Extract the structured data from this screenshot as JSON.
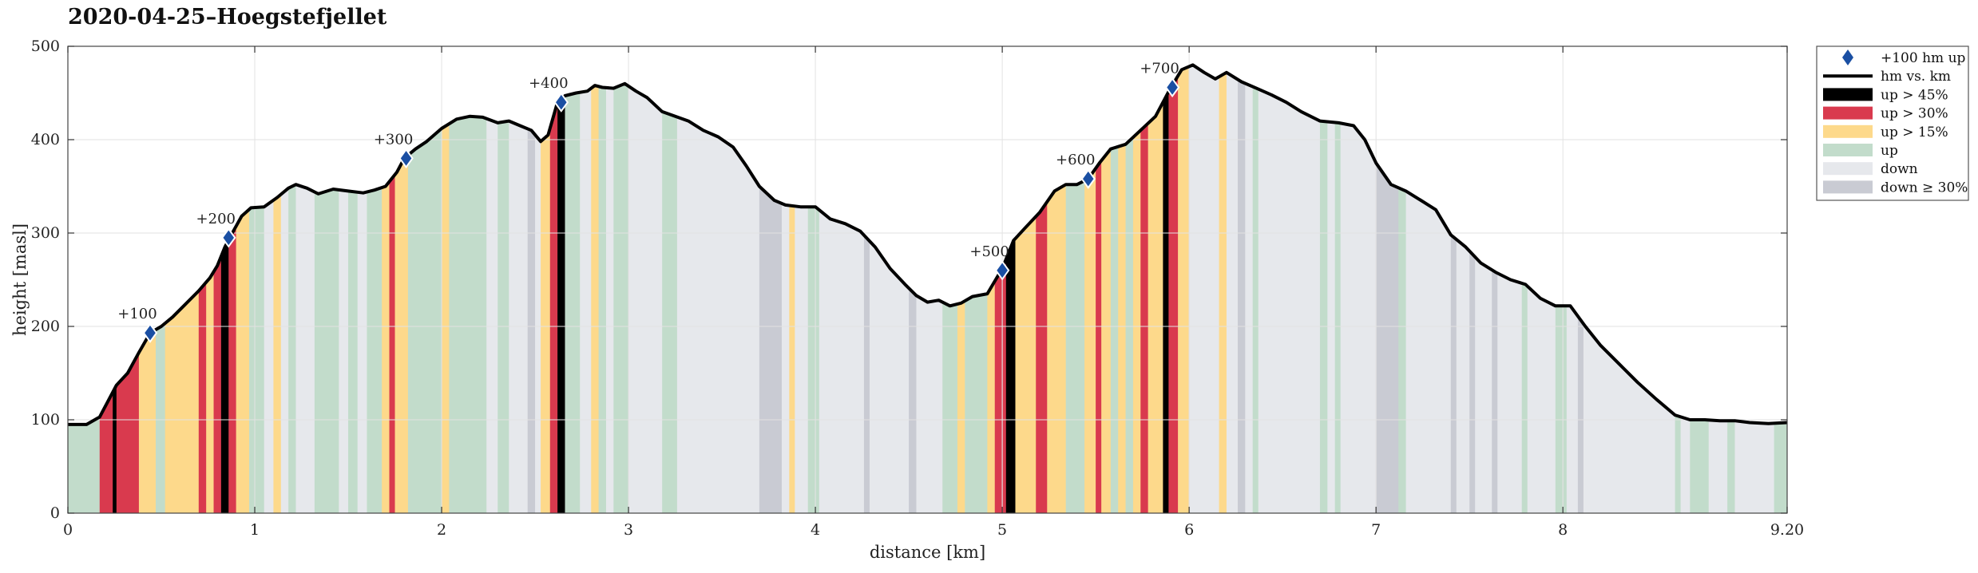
{
  "chart_data": {
    "type": "area",
    "title": "2020-04-25–Hoegstefjellet",
    "xlabel": "distance [km]",
    "ylabel": "height [masl]",
    "xlim": [
      0,
      9.2
    ],
    "ylim": [
      0,
      500
    ],
    "xticks": [
      0,
      1,
      2,
      3,
      4,
      5,
      6,
      7,
      8,
      9.2
    ],
    "xtick_labels": [
      "0",
      "1",
      "2",
      "3",
      "4",
      "5",
      "6",
      "7",
      "8",
      "9.20"
    ],
    "yticks": [
      0,
      100,
      200,
      300,
      400,
      500
    ],
    "ytick_labels": [
      "0",
      "100",
      "200",
      "300",
      "400",
      "500"
    ],
    "grid": true,
    "legend_position": "outside-top-right",
    "colors": {
      "profile": "#000000",
      "marker": "#1a4fa3",
      "up45": "#000000",
      "up30": "#d93a4e",
      "up15": "#fdd98b",
      "up": "#c2dccb",
      "down": "#e6e8ec",
      "down30": "#c9cbd3"
    },
    "legend": [
      {
        "key": "marker",
        "label": "+100 hm up"
      },
      {
        "key": "line",
        "label": "hm vs. km"
      },
      {
        "key": "up45",
        "label": "up > 45%"
      },
      {
        "key": "up30",
        "label": "up > 30%"
      },
      {
        "key": "up15",
        "label": "up > 15%"
      },
      {
        "key": "up",
        "label": "up"
      },
      {
        "key": "down",
        "label": "down"
      },
      {
        "key": "down30",
        "label": "down ≥ 30%"
      }
    ],
    "profile": [
      [
        0.0,
        95
      ],
      [
        0.1,
        95
      ],
      [
        0.17,
        103
      ],
      [
        0.21,
        118
      ],
      [
        0.26,
        137
      ],
      [
        0.32,
        150
      ],
      [
        0.38,
        172
      ],
      [
        0.44,
        193
      ],
      [
        0.5,
        200
      ],
      [
        0.56,
        210
      ],
      [
        0.62,
        222
      ],
      [
        0.7,
        238
      ],
      [
        0.76,
        252
      ],
      [
        0.8,
        265
      ],
      [
        0.84,
        285
      ],
      [
        0.88,
        300
      ],
      [
        0.93,
        318
      ],
      [
        0.98,
        327
      ],
      [
        1.05,
        328
      ],
      [
        1.12,
        338
      ],
      [
        1.18,
        348
      ],
      [
        1.22,
        352
      ],
      [
        1.28,
        348
      ],
      [
        1.34,
        342
      ],
      [
        1.42,
        347
      ],
      [
        1.5,
        345
      ],
      [
        1.58,
        343
      ],
      [
        1.64,
        346
      ],
      [
        1.7,
        350
      ],
      [
        1.76,
        365
      ],
      [
        1.8,
        380
      ],
      [
        1.86,
        390
      ],
      [
        1.92,
        398
      ],
      [
        2.0,
        412
      ],
      [
        2.08,
        422
      ],
      [
        2.15,
        425
      ],
      [
        2.22,
        424
      ],
      [
        2.3,
        418
      ],
      [
        2.36,
        420
      ],
      [
        2.42,
        415
      ],
      [
        2.48,
        410
      ],
      [
        2.53,
        398
      ],
      [
        2.57,
        405
      ],
      [
        2.62,
        440
      ],
      [
        2.66,
        447
      ],
      [
        2.72,
        450
      ],
      [
        2.78,
        452
      ],
      [
        2.82,
        458
      ],
      [
        2.86,
        456
      ],
      [
        2.92,
        455
      ],
      [
        2.98,
        460
      ],
      [
        3.04,
        452
      ],
      [
        3.1,
        445
      ],
      [
        3.18,
        430
      ],
      [
        3.25,
        425
      ],
      [
        3.32,
        420
      ],
      [
        3.4,
        410
      ],
      [
        3.48,
        403
      ],
      [
        3.56,
        392
      ],
      [
        3.63,
        372
      ],
      [
        3.7,
        350
      ],
      [
        3.78,
        335
      ],
      [
        3.84,
        330
      ],
      [
        3.92,
        328
      ],
      [
        4.0,
        328
      ],
      [
        4.08,
        315
      ],
      [
        4.16,
        310
      ],
      [
        4.24,
        302
      ],
      [
        4.32,
        285
      ],
      [
        4.4,
        262
      ],
      [
        4.48,
        245
      ],
      [
        4.54,
        233
      ],
      [
        4.6,
        226
      ],
      [
        4.66,
        228
      ],
      [
        4.72,
        222
      ],
      [
        4.78,
        225
      ],
      [
        4.84,
        232
      ],
      [
        4.92,
        235
      ],
      [
        5.0,
        262
      ],
      [
        5.06,
        292
      ],
      [
        5.12,
        305
      ],
      [
        5.2,
        322
      ],
      [
        5.28,
        345
      ],
      [
        5.34,
        352
      ],
      [
        5.4,
        352
      ],
      [
        5.46,
        358
      ],
      [
        5.52,
        375
      ],
      [
        5.58,
        390
      ],
      [
        5.66,
        395
      ],
      [
        5.74,
        410
      ],
      [
        5.82,
        425
      ],
      [
        5.9,
        455
      ],
      [
        5.96,
        475
      ],
      [
        6.02,
        480
      ],
      [
        6.08,
        472
      ],
      [
        6.14,
        465
      ],
      [
        6.2,
        472
      ],
      [
        6.28,
        462
      ],
      [
        6.36,
        455
      ],
      [
        6.44,
        448
      ],
      [
        6.52,
        440
      ],
      [
        6.6,
        430
      ],
      [
        6.7,
        420
      ],
      [
        6.8,
        418
      ],
      [
        6.88,
        415
      ],
      [
        6.94,
        400
      ],
      [
        7.0,
        375
      ],
      [
        7.08,
        352
      ],
      [
        7.16,
        345
      ],
      [
        7.24,
        335
      ],
      [
        7.32,
        325
      ],
      [
        7.4,
        298
      ],
      [
        7.48,
        285
      ],
      [
        7.56,
        268
      ],
      [
        7.64,
        258
      ],
      [
        7.72,
        250
      ],
      [
        7.8,
        245
      ],
      [
        7.88,
        230
      ],
      [
        7.96,
        222
      ],
      [
        8.04,
        222
      ],
      [
        8.12,
        200
      ],
      [
        8.2,
        180
      ],
      [
        8.3,
        160
      ],
      [
        8.4,
        140
      ],
      [
        8.5,
        122
      ],
      [
        8.6,
        105
      ],
      [
        8.68,
        100
      ],
      [
        8.76,
        100
      ],
      [
        8.84,
        99
      ],
      [
        8.92,
        99
      ],
      [
        9.0,
        97
      ],
      [
        9.1,
        96
      ],
      [
        9.2,
        97
      ]
    ],
    "segments": [
      [
        0.0,
        0.17,
        "up"
      ],
      [
        0.17,
        0.24,
        "up30"
      ],
      [
        0.24,
        0.26,
        "up45"
      ],
      [
        0.26,
        0.38,
        "up30"
      ],
      [
        0.38,
        0.47,
        "up15"
      ],
      [
        0.47,
        0.52,
        "up"
      ],
      [
        0.52,
        0.7,
        "up15"
      ],
      [
        0.7,
        0.74,
        "up30"
      ],
      [
        0.74,
        0.78,
        "up15"
      ],
      [
        0.78,
        0.82,
        "up30"
      ],
      [
        0.82,
        0.86,
        "up45"
      ],
      [
        0.86,
        0.9,
        "up30"
      ],
      [
        0.9,
        0.97,
        "up15"
      ],
      [
        0.97,
        1.05,
        "up"
      ],
      [
        1.05,
        1.1,
        "down"
      ],
      [
        1.1,
        1.14,
        "up15"
      ],
      [
        1.14,
        1.18,
        "down"
      ],
      [
        1.18,
        1.22,
        "up"
      ],
      [
        1.22,
        1.32,
        "down"
      ],
      [
        1.32,
        1.45,
        "up"
      ],
      [
        1.45,
        1.5,
        "down"
      ],
      [
        1.5,
        1.55,
        "up"
      ],
      [
        1.55,
        1.6,
        "down"
      ],
      [
        1.6,
        1.68,
        "up"
      ],
      [
        1.68,
        1.72,
        "up15"
      ],
      [
        1.72,
        1.75,
        "up30"
      ],
      [
        1.75,
        1.82,
        "up15"
      ],
      [
        1.82,
        2.0,
        "up"
      ],
      [
        2.0,
        2.04,
        "up15"
      ],
      [
        2.04,
        2.24,
        "up"
      ],
      [
        2.24,
        2.3,
        "down"
      ],
      [
        2.3,
        2.36,
        "up"
      ],
      [
        2.36,
        2.46,
        "down"
      ],
      [
        2.46,
        2.5,
        "down30"
      ],
      [
        2.5,
        2.53,
        "down"
      ],
      [
        2.53,
        2.58,
        "up15"
      ],
      [
        2.58,
        2.62,
        "up30"
      ],
      [
        2.62,
        2.66,
        "up45"
      ],
      [
        2.66,
        2.74,
        "up"
      ],
      [
        2.74,
        2.8,
        "down"
      ],
      [
        2.8,
        2.84,
        "up15"
      ],
      [
        2.84,
        2.88,
        "up"
      ],
      [
        2.88,
        2.92,
        "down"
      ],
      [
        2.92,
        2.96,
        "up"
      ],
      [
        2.96,
        3.0,
        "up"
      ],
      [
        3.0,
        3.18,
        "down"
      ],
      [
        3.18,
        3.26,
        "up"
      ],
      [
        3.26,
        3.7,
        "down"
      ],
      [
        3.7,
        3.82,
        "down30"
      ],
      [
        3.82,
        3.86,
        "down"
      ],
      [
        3.86,
        3.89,
        "up15"
      ],
      [
        3.89,
        3.96,
        "down"
      ],
      [
        3.96,
        4.02,
        "up"
      ],
      [
        4.02,
        4.26,
        "down"
      ],
      [
        4.26,
        4.29,
        "down30"
      ],
      [
        4.29,
        4.5,
        "down"
      ],
      [
        4.5,
        4.54,
        "down30"
      ],
      [
        4.54,
        4.68,
        "down"
      ],
      [
        4.68,
        4.76,
        "up"
      ],
      [
        4.76,
        4.8,
        "up15"
      ],
      [
        4.8,
        4.92,
        "up"
      ],
      [
        4.92,
        4.96,
        "up15"
      ],
      [
        4.96,
        5.02,
        "up30"
      ],
      [
        5.02,
        5.07,
        "up45"
      ],
      [
        5.07,
        5.18,
        "up15"
      ],
      [
        5.18,
        5.24,
        "up30"
      ],
      [
        5.24,
        5.34,
        "up15"
      ],
      [
        5.34,
        5.44,
        "up"
      ],
      [
        5.44,
        5.5,
        "up15"
      ],
      [
        5.5,
        5.53,
        "up30"
      ],
      [
        5.53,
        5.58,
        "up15"
      ],
      [
        5.58,
        5.62,
        "up"
      ],
      [
        5.62,
        5.66,
        "up15"
      ],
      [
        5.66,
        5.7,
        "up"
      ],
      [
        5.7,
        5.74,
        "up15"
      ],
      [
        5.74,
        5.78,
        "up30"
      ],
      [
        5.78,
        5.86,
        "up15"
      ],
      [
        5.86,
        5.89,
        "up45"
      ],
      [
        5.89,
        5.94,
        "up30"
      ],
      [
        5.94,
        6.0,
        "up15"
      ],
      [
        6.0,
        6.16,
        "down"
      ],
      [
        6.16,
        6.2,
        "up15"
      ],
      [
        6.2,
        6.26,
        "down"
      ],
      [
        6.26,
        6.3,
        "down30"
      ],
      [
        6.3,
        6.34,
        "down"
      ],
      [
        6.34,
        6.37,
        "up"
      ],
      [
        6.37,
        6.7,
        "down"
      ],
      [
        6.7,
        6.74,
        "up"
      ],
      [
        6.74,
        6.78,
        "down"
      ],
      [
        6.78,
        6.81,
        "up"
      ],
      [
        6.81,
        7.0,
        "down"
      ],
      [
        7.0,
        7.12,
        "down30"
      ],
      [
        7.12,
        7.16,
        "up"
      ],
      [
        7.16,
        7.4,
        "down"
      ],
      [
        7.4,
        7.43,
        "down30"
      ],
      [
        7.43,
        7.5,
        "down"
      ],
      [
        7.5,
        7.53,
        "down30"
      ],
      [
        7.53,
        7.62,
        "down"
      ],
      [
        7.62,
        7.65,
        "down30"
      ],
      [
        7.65,
        7.78,
        "down"
      ],
      [
        7.78,
        7.81,
        "up"
      ],
      [
        7.81,
        7.96,
        "down"
      ],
      [
        7.96,
        8.02,
        "up"
      ],
      [
        8.02,
        8.08,
        "down"
      ],
      [
        8.08,
        8.11,
        "down30"
      ],
      [
        8.11,
        8.6,
        "down"
      ],
      [
        8.6,
        8.63,
        "up"
      ],
      [
        8.63,
        8.68,
        "down"
      ],
      [
        8.68,
        8.78,
        "up"
      ],
      [
        8.78,
        8.88,
        "down"
      ],
      [
        8.88,
        8.92,
        "up"
      ],
      [
        8.92,
        9.13,
        "down"
      ],
      [
        9.13,
        9.2,
        "up"
      ]
    ],
    "milestones": [
      {
        "x": 0.44,
        "y": 193,
        "label": "+100"
      },
      {
        "x": 0.86,
        "y": 295,
        "label": "+200"
      },
      {
        "x": 1.81,
        "y": 380,
        "label": "+300"
      },
      {
        "x": 2.64,
        "y": 440,
        "label": "+400"
      },
      {
        "x": 5.0,
        "y": 260,
        "label": "+500"
      },
      {
        "x": 5.46,
        "y": 358,
        "label": "+600"
      },
      {
        "x": 5.91,
        "y": 456,
        "label": "+700"
      }
    ]
  }
}
